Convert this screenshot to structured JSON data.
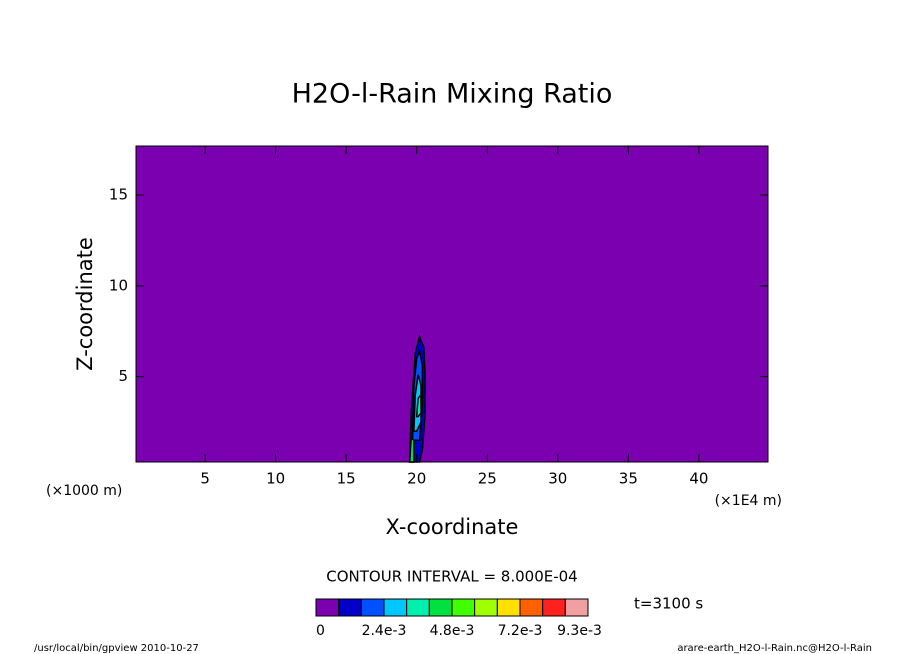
{
  "chart_data": {
    "type": "contour",
    "title": "H2O-l-Rain Mixing Ratio",
    "xlabel": "X-coordinate",
    "ylabel": "Z-coordinate",
    "ylabel_unit": "(×1000 m)",
    "xlabel_unit": "(×1E4 m)",
    "xlim": [
      0.1,
      44.9
    ],
    "ylim": [
      0.3,
      17.7
    ],
    "xticks": [
      5,
      10,
      15,
      20,
      25,
      30,
      35,
      40
    ],
    "yticks": [
      5,
      10,
      15
    ],
    "background_color": "#7b00b0",
    "contours": [
      {
        "level": 0.0008,
        "color": "#0000c8",
        "x": [
          19.5,
          19.6,
          19.9,
          20.2,
          20.5,
          20.6,
          20.6,
          20.4,
          20.2,
          19.5
        ],
        "z": [
          0.3,
          3.0,
          6.3,
          7.2,
          6.6,
          5.0,
          3.0,
          1.0,
          0.3,
          0.3
        ]
      },
      {
        "level": 0.0016,
        "color": "#0050ff",
        "x": [
          19.7,
          19.8,
          20.0,
          20.2,
          20.4,
          20.4,
          20.2,
          19.7
        ],
        "z": [
          1.5,
          4.5,
          6.0,
          6.4,
          5.6,
          3.5,
          1.5,
          1.5
        ]
      },
      {
        "level": 0.0024,
        "color": "#00c8ff",
        "x": [
          19.8,
          19.9,
          20.1,
          20.3,
          20.3,
          20.0
        ],
        "z": [
          2.0,
          4.0,
          5.1,
          4.5,
          2.5,
          2.0
        ]
      },
      {
        "level": 0.0032,
        "color": "#00f0b0",
        "x": [
          20.0,
          20.1,
          20.3,
          20.3,
          20.1
        ],
        "z": [
          2.8,
          3.8,
          4.0,
          3.0,
          2.8
        ]
      },
      {
        "level": 0.004,
        "color": "#00e040",
        "x": [
          19.5,
          19.6,
          19.8,
          19.8,
          19.6
        ],
        "z": [
          0.3,
          1.6,
          1.5,
          0.3,
          0.3
        ]
      }
    ],
    "contour_interval_text": "CONTOUR INTERVAL = 8.000E-04",
    "time_text": "t=3100 s",
    "colorbar": {
      "lim": [
        0,
        0.0096
      ],
      "levels": [
        0,
        0.0008,
        0.0016,
        0.0024,
        0.0032,
        0.004,
        0.0048,
        0.0056,
        0.0064,
        0.0072,
        0.008,
        0.0088
      ],
      "colors": [
        "#7b00b0",
        "#0000c8",
        "#0050ff",
        "#00c8ff",
        "#00f0b0",
        "#00e040",
        "#40ff00",
        "#a0ff00",
        "#ffe000",
        "#ff6000",
        "#ff2020",
        "#f0a0a0"
      ],
      "ticks": [
        0,
        {
          "value": 0.0024,
          "label": "2.4e-3"
        },
        {
          "value": 0.0048,
          "label": "4.8e-3"
        },
        {
          "value": 0.0072,
          "label": "7.2e-3"
        },
        {
          "value": 0.0093,
          "label": "9.3e-3"
        }
      ]
    },
    "footer_left": "/usr/local/bin/gpview  2010-10-27",
    "footer_right": "arare-earth_H2O-l-Rain.nc@H2O-l-Rain"
  }
}
